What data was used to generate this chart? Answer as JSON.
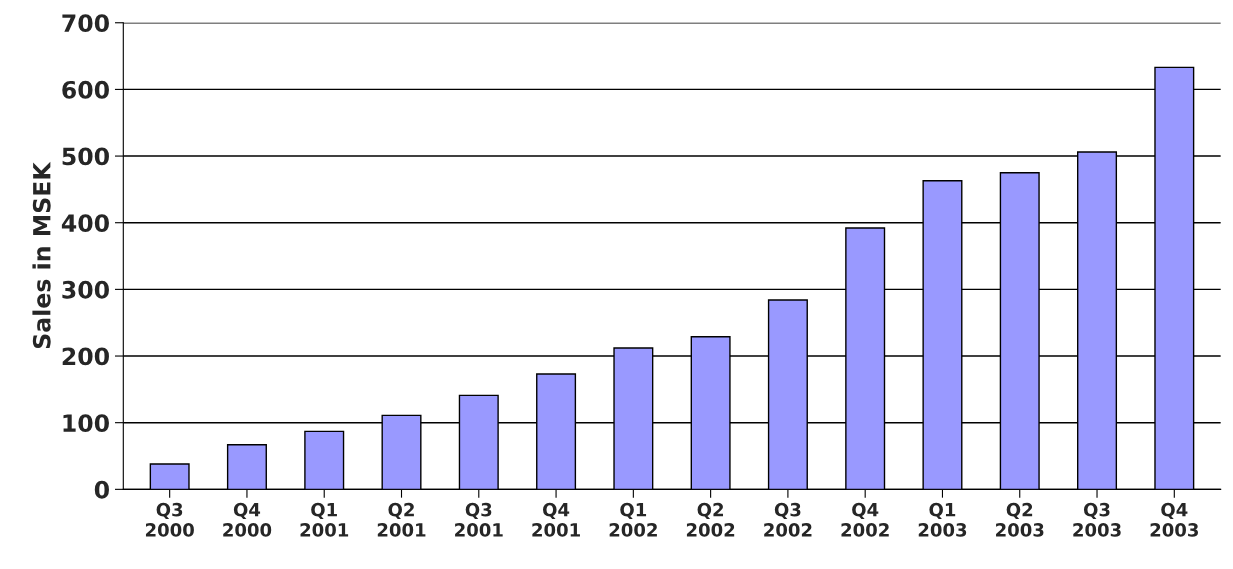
{
  "chart_data": {
    "type": "bar",
    "ylabel": "Sales in MSEK",
    "categories": [
      "Q3\n2000",
      "Q4\n2000",
      "Q1\n2001",
      "Q2\n2001",
      "Q3\n2001",
      "Q4\n2001",
      "Q1\n2002",
      "Q2\n2002",
      "Q3\n2002",
      "Q4\n2002",
      "Q1\n2003",
      "Q2\n2003",
      "Q3\n2003",
      "Q4\n2003"
    ],
    "values": [
      38,
      67,
      87,
      111,
      141,
      173,
      212,
      229,
      284,
      392,
      463,
      475,
      506,
      633
    ],
    "color": "#9999ff",
    "ylim": [
      0,
      700
    ],
    "yticks": [
      0,
      100,
      200,
      300,
      400,
      500,
      600,
      700
    ],
    "grid": "y"
  }
}
